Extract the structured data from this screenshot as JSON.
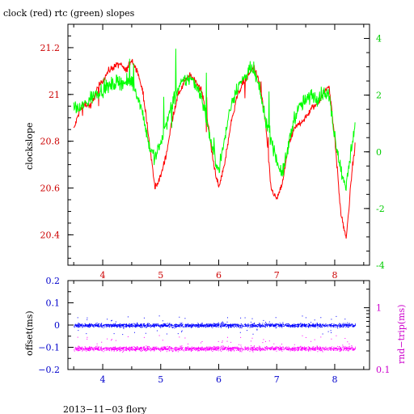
{
  "chart_data": [
    {
      "type": "line",
      "title": "clock (red) rtc (green) slopes",
      "ylabel": "clockslope",
      "xlim": [
        3.4,
        8.6
      ],
      "ylim": [
        20.27,
        21.3
      ],
      "y2lim": [
        -4,
        4.5
      ],
      "x_ticks": [
        4,
        5,
        6,
        7,
        8
      ],
      "y_ticks": [
        20.4,
        20.6,
        20.8,
        21,
        21.2
      ],
      "y2_ticks": [
        -4,
        -2,
        0,
        2,
        4
      ],
      "x_tick_color": "#cc0000",
      "y_tick_color": "#cc0000",
      "y2_tick_color": "#00cc00",
      "series": [
        {
          "name": "clock (red)",
          "color": "#ff0000",
          "axis": "left",
          "x": [
            3.5,
            3.6,
            3.7,
            3.8,
            3.9,
            4.0,
            4.1,
            4.2,
            4.3,
            4.4,
            4.5,
            4.6,
            4.7,
            4.8,
            4.9,
            5.0,
            5.1,
            5.2,
            5.3,
            5.4,
            5.5,
            5.6,
            5.7,
            5.8,
            5.9,
            6.0,
            6.1,
            6.2,
            6.3,
            6.4,
            6.5,
            6.6,
            6.7,
            6.8,
            6.9,
            7.0,
            7.1,
            7.2,
            7.3,
            7.4,
            7.5,
            7.6,
            7.7,
            7.8,
            7.9,
            8.0,
            8.1,
            8.2,
            8.3,
            8.35
          ],
          "y": [
            20.85,
            20.93,
            20.96,
            20.95,
            21.02,
            21.06,
            21.1,
            21.12,
            21.13,
            21.1,
            21.15,
            21.1,
            21.0,
            20.8,
            20.6,
            20.65,
            20.75,
            20.9,
            21.0,
            21.05,
            21.08,
            21.06,
            21.02,
            20.9,
            20.72,
            20.6,
            20.7,
            20.86,
            20.98,
            21.04,
            21.08,
            21.12,
            21.05,
            20.9,
            20.6,
            20.55,
            20.62,
            20.78,
            20.85,
            20.88,
            20.9,
            20.94,
            20.96,
            21.0,
            21.04,
            20.82,
            20.5,
            20.38,
            20.68,
            20.78
          ]
        },
        {
          "name": "rtc (green)",
          "color": "#00ff00",
          "axis": "right",
          "x": [
            3.5,
            3.6,
            3.7,
            3.8,
            3.9,
            4.0,
            4.1,
            4.2,
            4.3,
            4.4,
            4.5,
            4.6,
            4.7,
            4.8,
            4.9,
            5.0,
            5.1,
            5.2,
            5.3,
            5.4,
            5.5,
            5.6,
            5.7,
            5.8,
            5.9,
            6.0,
            6.1,
            6.2,
            6.3,
            6.4,
            6.5,
            6.6,
            6.7,
            6.8,
            6.9,
            7.0,
            7.1,
            7.2,
            7.3,
            7.4,
            7.5,
            7.6,
            7.7,
            7.8,
            7.9,
            8.0,
            8.1,
            8.2,
            8.3,
            8.35
          ],
          "y": [
            1.6,
            1.5,
            1.7,
            1.9,
            2.1,
            2.2,
            2.3,
            2.4,
            2.5,
            2.4,
            2.5,
            2.0,
            1.3,
            0.2,
            -0.2,
            0.3,
            1.0,
            1.7,
            2.2,
            2.5,
            2.6,
            2.4,
            2.0,
            1.0,
            0.0,
            -0.6,
            0.4,
            1.6,
            2.2,
            2.5,
            2.8,
            2.9,
            2.2,
            1.2,
            0.5,
            -0.3,
            -0.8,
            0.2,
            1.2,
            1.6,
            1.8,
            2.0,
            1.9,
            2.1,
            2.0,
            0.6,
            -0.6,
            -1.2,
            0.3,
            1.0
          ]
        }
      ]
    },
    {
      "type": "scatter",
      "ylabel": "offset(ms)",
      "y2label": "rnd−trip(ms)",
      "xlim": [
        3.4,
        8.6
      ],
      "ylim": [
        -0.2,
        0.2
      ],
      "y2_scale": "log",
      "x_ticks": [
        4,
        5,
        6,
        7,
        8
      ],
      "y_ticks": [
        -0.2,
        -0.1,
        0,
        0.1,
        0.2
      ],
      "y_tick_labels": [
        "−0.2",
        "−0.1",
        "0",
        "0.1",
        "0.2"
      ],
      "y2_ticks": [
        1,
        0.1
      ],
      "x_tick_color": "#0000cc",
      "y_tick_color": "#0000cc",
      "y2_tick_color": "#cc00cc",
      "series": [
        {
          "name": "offset",
          "color": "#0000ff",
          "axis": "left",
          "x_range": [
            3.5,
            8.35
          ],
          "center": 0.0,
          "spread": 0.012
        },
        {
          "name": "rnd-trip",
          "color": "#ff00ff",
          "axis": "right",
          "x_range": [
            3.5,
            8.35
          ],
          "center": 0.22,
          "spread": 0.02
        }
      ]
    }
  ],
  "footer": "2013−11−03 flory"
}
